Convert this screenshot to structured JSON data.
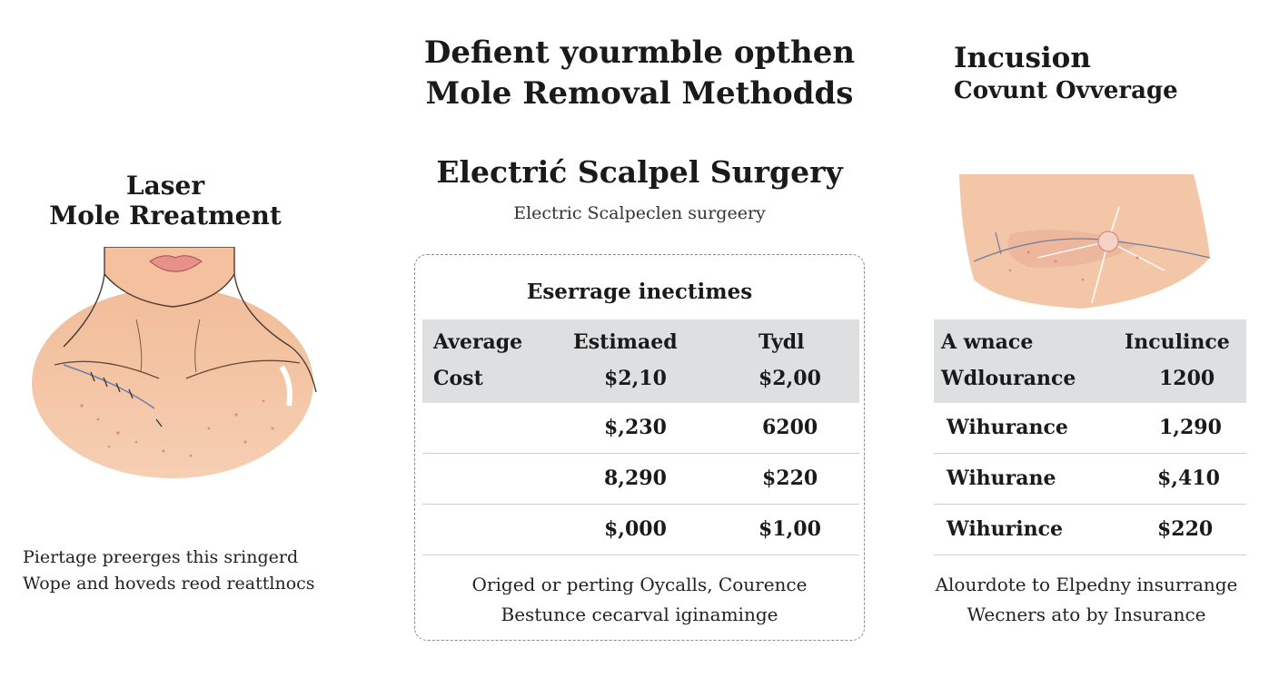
{
  "header": {
    "title_line1": "Defient yourmble opthen",
    "title_line2": "Mole Removal Methodds"
  },
  "left": {
    "title_line1": "Laser",
    "title_line2": "Mole Rreatment",
    "caption_line1": "Piertage preerges this sringerd",
    "caption_line2": "Wope and hoveds reod reattlnocs"
  },
  "middle": {
    "heading": "Electrić Scalpel Surgery",
    "subheading": "Electric Scalpeclen surgeery",
    "card_title": "Eserrage inectimes",
    "table": {
      "header_row1": [
        "Average",
        "Estimaed",
        "Tydl"
      ],
      "header_row2": [
        "Cost",
        "$2,10",
        "$2,00"
      ],
      "rows": [
        [
          "",
          "$,230",
          "6200"
        ],
        [
          "",
          "8,290",
          "$220"
        ],
        [
          "",
          "$,000",
          "$1,00"
        ]
      ]
    },
    "footer_line1": "Origed or perting Oycalls, Courence",
    "footer_line2": "Bestunce cecarval iginaminge"
  },
  "right": {
    "title_line1": "Incusion",
    "title_line2": "Covunt Ovverage",
    "table": {
      "header_row1": [
        "A wnace",
        "Inculince"
      ],
      "header_row2": [
        "Wdlourance",
        "1200"
      ],
      "rows": [
        [
          "Wihurance",
          "1,290"
        ],
        [
          "Wihurane",
          "$,410"
        ],
        [
          "Wihurince",
          "$220"
        ]
      ]
    },
    "footer_line1": "Alourdote to Elpedny insurrange",
    "footer_line2": "Wecners ato by Insurance"
  },
  "colors": {
    "table_header_bg": "#dedfe0",
    "skin": "#f2c6a6",
    "lip": "#e7918a"
  }
}
